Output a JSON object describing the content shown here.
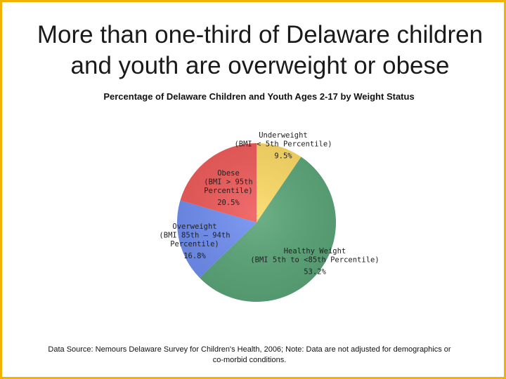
{
  "title_line1": "More than one-third of Delaware children",
  "title_line2": "and youth are overweight or obese",
  "chart_data": {
    "type": "pie",
    "title": "Percentage of Delaware Children and Youth Ages 2-17 by Weight Status",
    "slices": [
      {
        "key": "underweight",
        "lines": [
          "Underweight",
          "(BMI < 5th Percentile)"
        ],
        "value": 9.5,
        "value_label": "9.5%",
        "color": "#fbd964"
      },
      {
        "key": "healthy",
        "lines": [
          "Healthy Weight",
          "(BMI 5th to <85th Percentile)"
        ],
        "value": 53.2,
        "value_label": "53.2%",
        "color": "#5aa578"
      },
      {
        "key": "overweight",
        "lines": [
          "Overweight",
          "(BMI 85th – 94th",
          "Percentile)"
        ],
        "value": 16.8,
        "value_label": "16.8%",
        "color": "#6f8ef0"
      },
      {
        "key": "obese",
        "lines": [
          "Obese",
          "(BMI > 95th",
          "Percentile)"
        ],
        "value": 20.5,
        "value_label": "20.5%",
        "color": "#ef5a5a"
      }
    ]
  },
  "source_note": "Data Source: Nemours Delaware Survey for Children's Health, 2006; Note: Data are not adjusted for demographics or co-morbid conditions."
}
